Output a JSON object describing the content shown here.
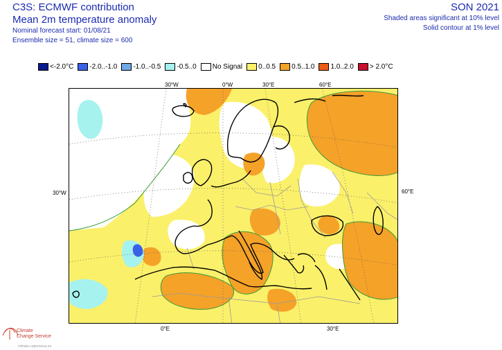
{
  "header": {
    "title": "C3S: ECMWF contribution",
    "subtitle": "Mean 2m temperature anomaly",
    "forecast_start": "Nominal forecast start: 01/08/21",
    "ensemble": "Ensemble size = 51, climate size = 600",
    "season": "SON 2021",
    "significance_shaded": "Shaded areas significant at 10% level",
    "significance_contour": "Solid contour at 1% level"
  },
  "legend": [
    {
      "label": "<-2.0°C",
      "color": "#0a1a8c"
    },
    {
      "label": "-2.0..-1.0",
      "color": "#3a62e8"
    },
    {
      "label": "-1.0..-0.5",
      "color": "#6ea8e6"
    },
    {
      "label": "-0.5..0",
      "color": "#a6f2ee"
    },
    {
      "label": "No Signal",
      "color": "#ffffff"
    },
    {
      "label": "0..0.5",
      "color": "#fbf06a"
    },
    {
      "label": "0.5..1.0",
      "color": "#f5a228"
    },
    {
      "label": "1.0..2.0",
      "color": "#f05a18"
    },
    {
      "label": "> 2.0°C",
      "color": "#c8102e"
    }
  ],
  "grid_labels": {
    "top_30w": "30°W",
    "top_0w": "0°W",
    "top_30e": "30°E",
    "top_60e": "60°E",
    "left_30w": "30°W",
    "right_60e": "60°E",
    "bottom_0e": "0°E",
    "bottom_30e": "30°E"
  },
  "logo": {
    "line1": "Climate",
    "line2": "Change Service",
    "sub": "climate.copernicus.eu"
  }
}
